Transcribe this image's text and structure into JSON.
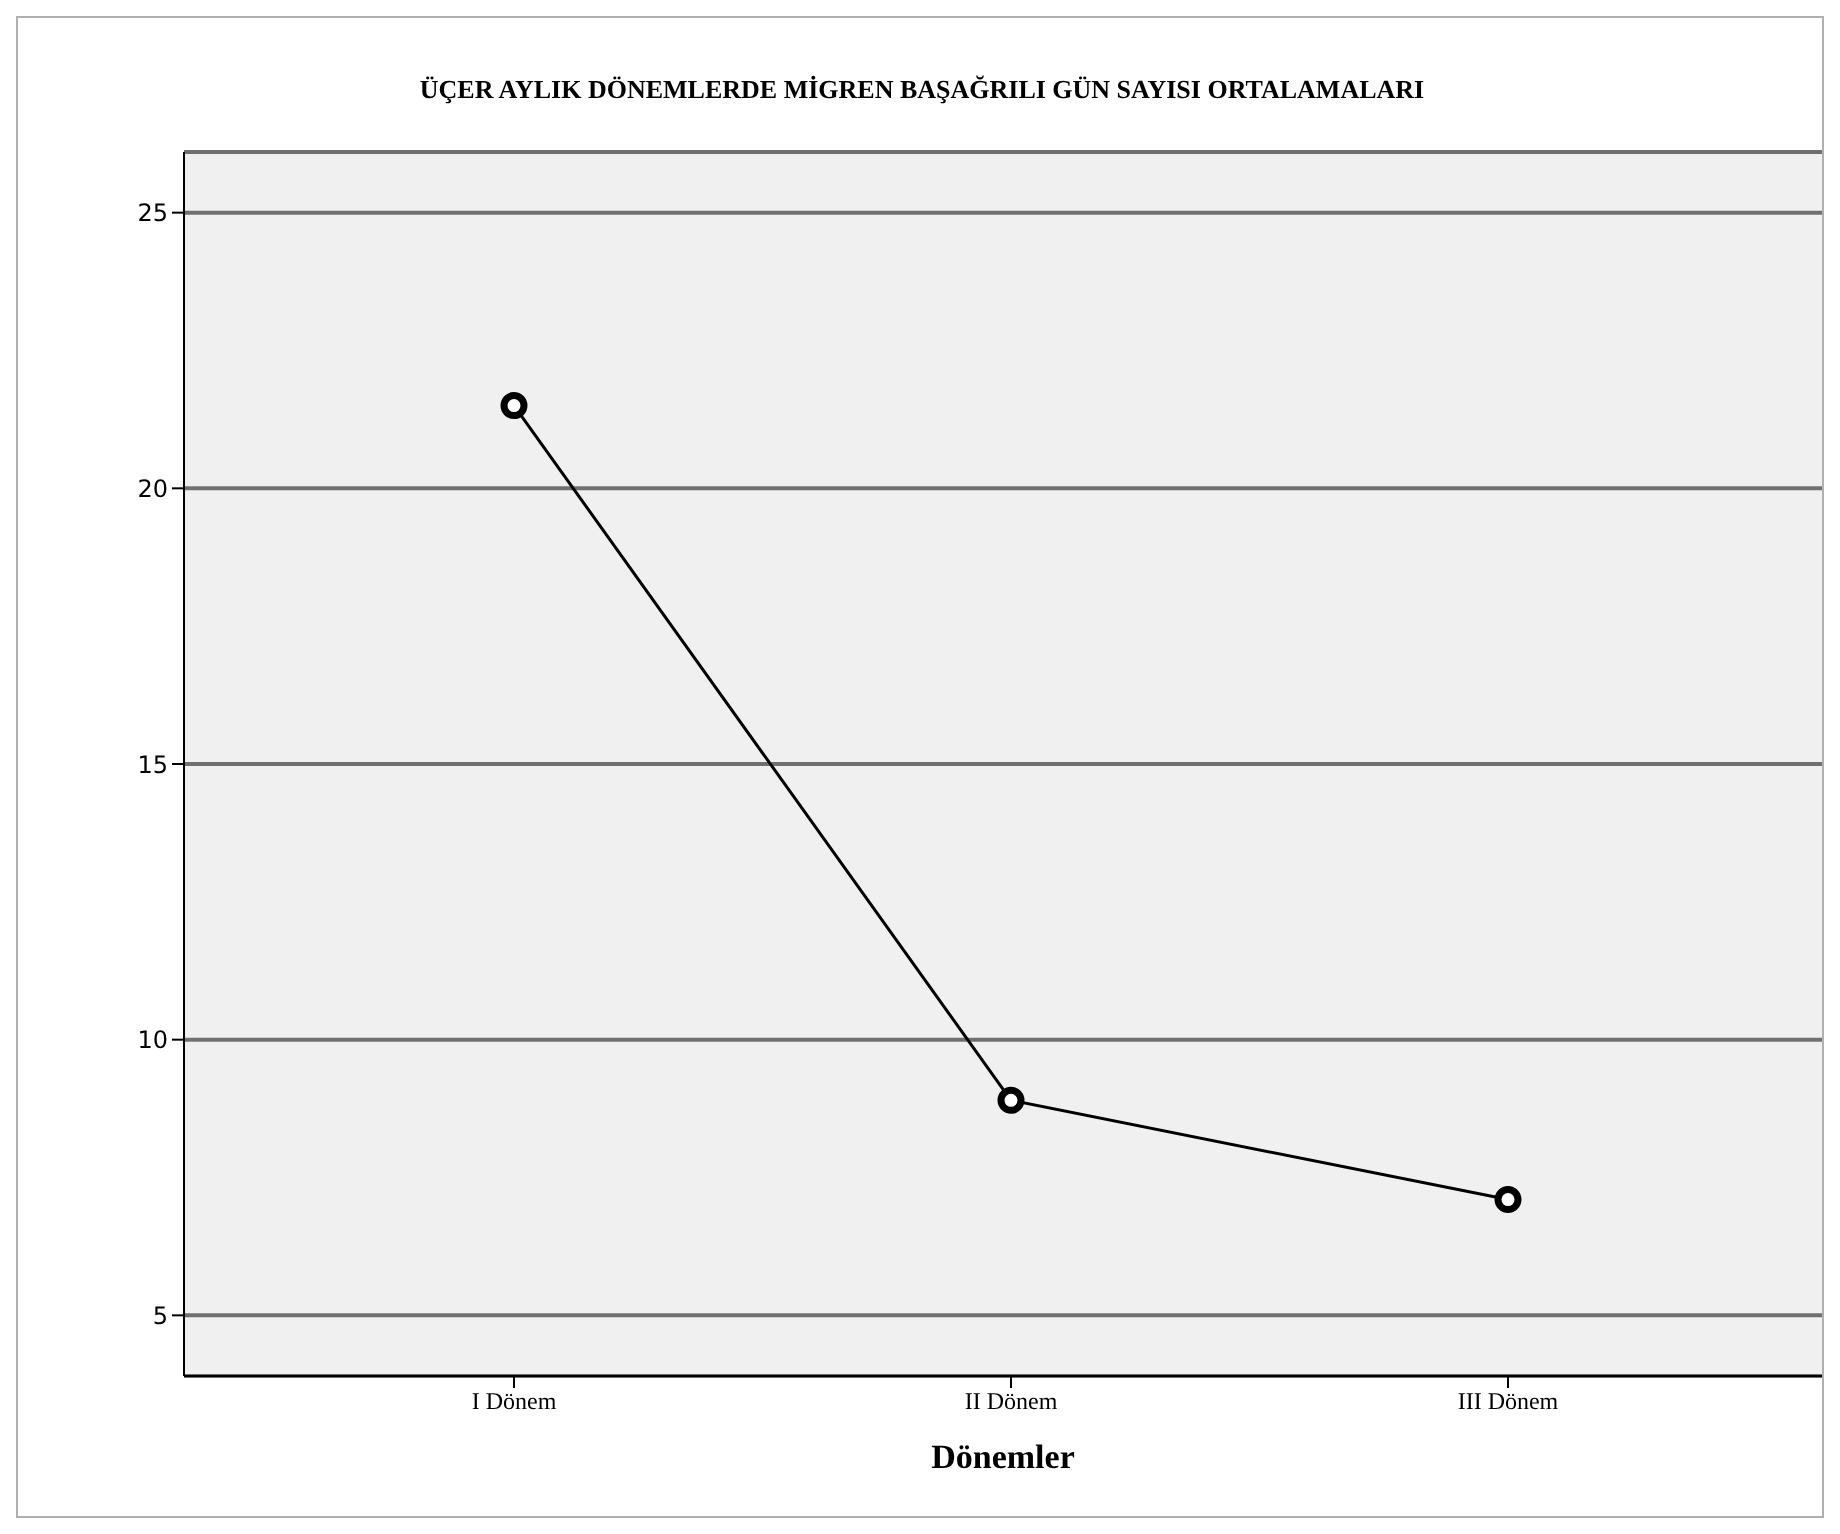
{
  "chart_data": {
    "type": "line",
    "title": "ÜÇER AYLIK DÖNEMLERDE  MİGREN BAŞAĞRILI GÜN SAYISI ORTALAMALARI",
    "xlabel": "Dönemler",
    "categories": [
      "I Dönem",
      "II Dönem",
      "III Dönem"
    ],
    "series": [
      {
        "color": "#000000",
        "values": [
          21.5,
          8.9,
          7.1
        ]
      }
    ],
    "ylim": [
      3.9,
      26.1
    ],
    "yticks": [
      5,
      10,
      15,
      20,
      25
    ],
    "grid": "y",
    "marker": "circle",
    "line_style": "solid"
  }
}
